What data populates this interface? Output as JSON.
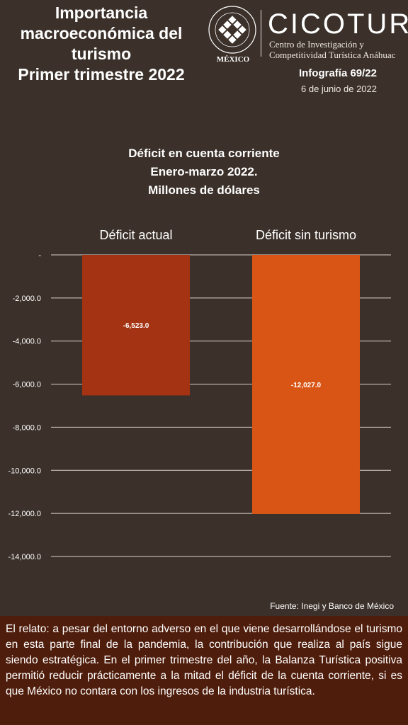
{
  "header": {
    "title_lines": [
      "Importancia",
      "macroeconómica del",
      "turismo",
      "Primer trimestre 2022"
    ],
    "university_seal_text": "UNIVERSIDAD ANÁHUAC · VINCE IN BONO MALUM",
    "university_country": "MÉXICO",
    "brand": "CICOTUR",
    "brand_sub_lines": [
      "Centro de Investigación y",
      "Competitividad Turística Anáhuac"
    ],
    "infografia": "Infografía 69/22",
    "date": "6 de junio de 2022"
  },
  "chart_data": {
    "type": "bar",
    "title_lines": [
      "Déficit en cuenta corriente",
      "Enero-marzo 2022.",
      "Millones de dólares"
    ],
    "categories": [
      "Déficit actual",
      "Déficit sin turismo"
    ],
    "values": [
      -6523.0,
      -12027.0
    ],
    "value_labels": [
      "-6,523.0",
      "-12,027.0"
    ],
    "bar_colors": [
      "#a33313",
      "#d95516"
    ],
    "ylim": [
      -14000,
      0
    ],
    "yticks": [
      0,
      -2000,
      -4000,
      -6000,
      -8000,
      -10000,
      -12000,
      -14000
    ],
    "ytick_labels": [
      "-",
      "-2,000.0",
      "-4,000.0",
      "-6,000.0",
      "-8,000.0",
      "-10,000.0",
      "-12,000.0",
      "-14,000.0"
    ],
    "grid": true,
    "legend": "none"
  },
  "source": "Fuente: Inegi y Banco de México",
  "story": "El relato: a pesar del entorno adverso en el que viene desarrollándose el turismo en esta parte final de la pandemia, la contribución que realiza al país sigue siendo estratégica. En el primer trimestre del año, la Balanza Turística positiva permitió reducir prácticamente a la mitad el déficit de la cuenta corriente, si es que México no contara con los ingresos de la industria turística."
}
